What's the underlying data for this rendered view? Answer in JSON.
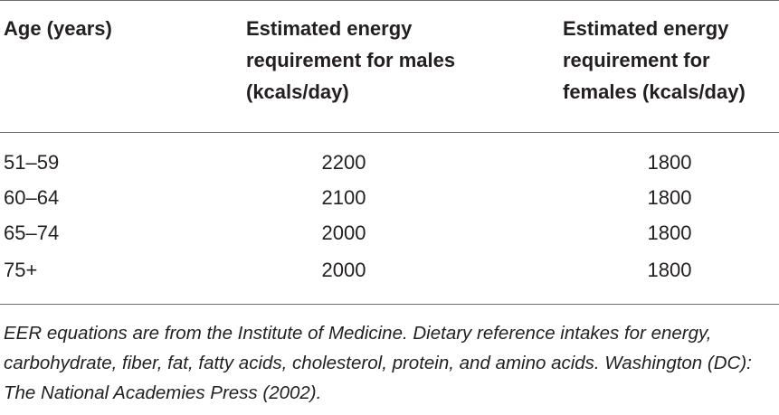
{
  "table": {
    "headers": [
      "Age (years)",
      "Estimated energy requirement for males (kcals/day)",
      "Estimated energy requirement for females (kcals/day)"
    ],
    "rows": [
      {
        "age": "51–59",
        "males": "2200",
        "females": "1800"
      },
      {
        "age": "60–64",
        "males": "2100",
        "females": "1800"
      },
      {
        "age": "65–74",
        "males": "2000",
        "females": "1800"
      },
      {
        "age": "75+",
        "males": "2000",
        "females": "1800"
      }
    ]
  },
  "footnote": "EER equations are from the Institute of Medicine. Dietary reference intakes for energy, carbohydrate, fiber, fat, fatty acids, cholesterol, protein, and amino acids. Washington (DC): The National Academies Press (2002)."
}
